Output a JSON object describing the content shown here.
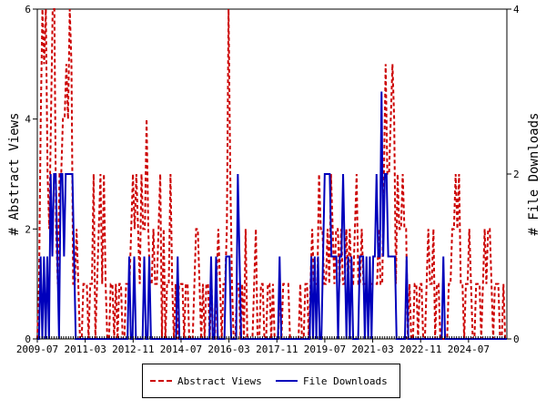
{
  "chart_data": {
    "type": "line",
    "title": "",
    "x_tick_labels": [
      "2009-07",
      "2011-03",
      "2012-11",
      "2014-07",
      "2016-03",
      "2017-11",
      "2019-07",
      "2021-03",
      "2022-11",
      "2024-07"
    ],
    "x_range": [
      "2009-07",
      "2025-11"
    ],
    "y_left": {
      "label": "# Abstract Views",
      "ylim": [
        0,
        6
      ],
      "ticks": [
        "0",
        "2",
        "4",
        "6"
      ]
    },
    "y_right": {
      "label": "# File Downloads",
      "ylim": [
        0,
        4
      ],
      "ticks": [
        "0",
        "2",
        "4"
      ]
    },
    "grid": false,
    "legend_position": "bottom",
    "series": [
      {
        "name": "Abstract Views",
        "axis": "left",
        "color": "#cc0000",
        "style": "dashed",
        "values": [
          0,
          1,
          4,
          6,
          5,
          6,
          3,
          2,
          4,
          6,
          6,
          2,
          1,
          3,
          3,
          4,
          4,
          5,
          4,
          6,
          5,
          1,
          1,
          2,
          1,
          0,
          0,
          1,
          1,
          1,
          0,
          1,
          1,
          3,
          0,
          1,
          2,
          3,
          1,
          3,
          1,
          0,
          0,
          1,
          1,
          0,
          1,
          0,
          1,
          1,
          0,
          0,
          1,
          1,
          1,
          2,
          3,
          2,
          3,
          2,
          1,
          3,
          2,
          2,
          4,
          2,
          1,
          1,
          2,
          1,
          1,
          2,
          3,
          0,
          2,
          0,
          1,
          1,
          3,
          1,
          0,
          1,
          0,
          1,
          1,
          1,
          0,
          1,
          1,
          0,
          0,
          0,
          1,
          2,
          2,
          1,
          0,
          1,
          0,
          1,
          1,
          0,
          1,
          0,
          0,
          1,
          2,
          1,
          0,
          1,
          1,
          2,
          6,
          3,
          1,
          0,
          0,
          1,
          1,
          0,
          1,
          0,
          2,
          0,
          0,
          0,
          0,
          1,
          2,
          0,
          0,
          1,
          1,
          0,
          0,
          1,
          1,
          0,
          1,
          0,
          0,
          0,
          1,
          0,
          1,
          1,
          1,
          1,
          0,
          0,
          0,
          0,
          0,
          0,
          1,
          0,
          0,
          1,
          1,
          0,
          1,
          2,
          1,
          1,
          1,
          3,
          2,
          2,
          1,
          1,
          2,
          1,
          3,
          2,
          1,
          2,
          2,
          1,
          2,
          1,
          1,
          2,
          1,
          2,
          1,
          1,
          2,
          3,
          1,
          1,
          2,
          1,
          1,
          1,
          1,
          1,
          1,
          1,
          1,
          1,
          2,
          1,
          1,
          3,
          5,
          3,
          3,
          4,
          5,
          4,
          1,
          3,
          2,
          2,
          3,
          2,
          2,
          0,
          1,
          0,
          0,
          1,
          1,
          0,
          1,
          1,
          0,
          0,
          1,
          2,
          1,
          1,
          2,
          0,
          1,
          1,
          0,
          0,
          0,
          0,
          0,
          1,
          1,
          2,
          2,
          3,
          2,
          3,
          1,
          1,
          0,
          1,
          1,
          2,
          1,
          0,
          0,
          1,
          1,
          1,
          0,
          1,
          2,
          1,
          2,
          2,
          1,
          0,
          1,
          1,
          1,
          0,
          0,
          1,
          0,
          0
        ],
        "start": "2009-07",
        "end": "2025-11"
      },
      {
        "name": "File Downloads",
        "axis": "right",
        "color": "#0000bb",
        "style": "solid",
        "values": [
          0,
          0,
          1,
          0,
          1,
          0,
          1,
          0,
          2,
          1,
          2,
          2,
          1,
          0,
          2,
          2,
          1,
          2,
          2,
          2,
          2,
          2,
          1,
          0,
          0,
          0,
          0,
          0,
          0,
          0,
          0,
          0,
          0,
          0,
          0,
          0,
          0,
          0,
          0,
          0,
          0,
          0,
          0,
          0,
          0,
          0,
          0,
          0,
          0,
          0,
          0,
          0,
          0,
          0,
          0,
          1,
          0,
          0,
          1,
          0,
          0,
          0,
          0,
          0,
          1,
          0,
          0,
          1,
          0,
          0,
          0,
          0,
          0,
          0,
          0,
          0,
          0,
          0,
          0,
          0,
          0,
          0,
          0,
          0,
          1,
          0,
          0,
          0,
          0,
          0,
          0,
          0,
          0,
          0,
          0,
          0,
          0,
          0,
          0,
          0,
          0,
          0,
          0,
          0,
          1,
          0,
          0,
          1,
          0,
          0,
          0,
          0,
          0,
          1,
          1,
          1,
          0,
          0,
          0,
          0,
          2,
          1,
          0,
          0,
          0,
          0,
          0,
          0,
          0,
          0,
          0,
          0,
          0,
          0,
          0,
          0,
          0,
          0,
          0,
          0,
          0,
          0,
          0,
          0,
          0,
          1,
          0,
          0,
          0,
          0,
          0,
          0,
          0,
          0,
          0,
          0,
          0,
          0,
          0,
          0,
          0,
          0,
          0,
          0,
          1,
          0,
          1,
          0,
          1,
          0,
          0,
          1,
          2,
          2,
          2,
          2,
          1,
          1,
          1,
          1,
          0,
          1,
          1,
          2,
          1,
          0,
          1,
          0,
          1,
          0,
          0,
          0,
          0,
          1,
          1,
          1,
          0,
          1,
          0,
          1,
          0,
          1,
          1,
          2,
          1,
          1,
          3,
          1,
          2,
          2,
          1,
          1,
          1,
          1,
          1,
          0,
          0,
          0,
          0,
          0,
          0,
          1,
          0,
          0,
          0,
          0,
          0,
          0,
          0,
          0,
          0,
          0,
          0,
          0,
          0,
          0,
          0,
          0,
          0,
          0,
          0,
          0,
          0,
          1,
          0,
          0,
          0,
          0,
          0,
          0,
          0,
          0,
          0,
          0,
          0,
          0,
          0,
          0,
          0,
          0,
          0,
          0,
          0,
          0,
          0,
          0,
          0,
          0,
          0,
          0,
          0,
          0,
          0,
          0,
          0,
          0,
          0,
          0,
          0,
          0,
          0,
          0
        ],
        "start": "2009-07",
        "end": "2025-11"
      }
    ]
  },
  "legend": {
    "items": [
      {
        "label": "Abstract Views"
      },
      {
        "label": "File Downloads"
      }
    ]
  }
}
